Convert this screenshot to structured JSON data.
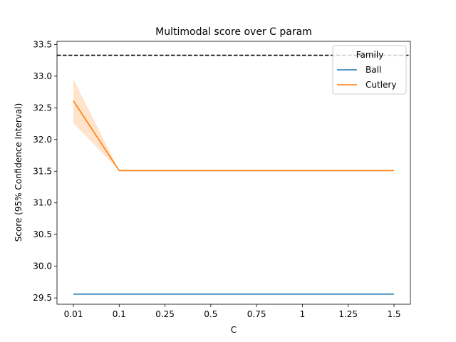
{
  "chart_data": {
    "type": "line",
    "title": "Multimodal score over C param",
    "xlabel": "C",
    "ylabel": "Score (95% Confidence Interval)",
    "categories": [
      "0.01",
      "0.1",
      "0.25",
      "0.5",
      "0.75",
      "1",
      "1.25",
      "1.5"
    ],
    "ylim": [
      29.4,
      33.55
    ],
    "yticks": [
      "29.5",
      "30.0",
      "30.5",
      "31.0",
      "31.5",
      "32.0",
      "32.5",
      "33.0",
      "33.5"
    ],
    "yticks_values": [
      29.5,
      30.0,
      30.5,
      31.0,
      31.5,
      32.0,
      32.5,
      33.0,
      33.5
    ],
    "reference_line": {
      "value": 33.33,
      "style": "dashed",
      "color": "#000000"
    },
    "legend": {
      "title": "Family",
      "position": "top-right"
    },
    "grid": false,
    "series": [
      {
        "name": "Ball",
        "color": "#1f77b4",
        "values": [
          29.56,
          29.56,
          29.56,
          29.56,
          29.56,
          29.56,
          29.56,
          29.56
        ]
      },
      {
        "name": "Cutlery",
        "color": "#ff7f0e",
        "values": [
          32.61,
          31.51,
          31.51,
          31.51,
          31.51,
          31.51,
          31.51,
          31.51
        ],
        "ci_lower": [
          32.26,
          31.51,
          31.51,
          31.51,
          31.51,
          31.51,
          31.51,
          31.51
        ],
        "ci_upper": [
          32.95,
          31.51,
          31.51,
          31.51,
          31.51,
          31.51,
          31.51,
          31.51
        ]
      }
    ]
  }
}
